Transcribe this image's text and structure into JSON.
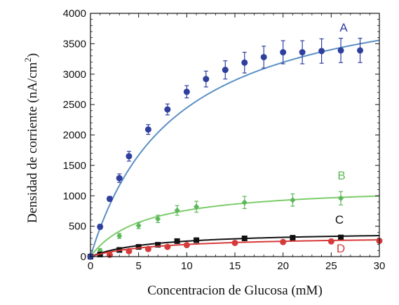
{
  "chart_data": {
    "type": "scatter",
    "title": "",
    "xlabel": "Concentracion de Glucosa (mM)",
    "ylabel_main": "Densidad de corriente (nA/cm",
    "ylabel_sup": "2",
    "ylabel_end": ")",
    "xlim": [
      0,
      30
    ],
    "ylim": [
      0,
      4000
    ],
    "x_ticks": [
      "0",
      "5",
      "10",
      "15",
      "20",
      "25",
      "30"
    ],
    "y_ticks": [
      "0",
      "500",
      "1000",
      "1500",
      "2000",
      "2500",
      "3000",
      "3500",
      "4000"
    ],
    "grid": false,
    "legend": "series labels placed near the right end of each curve",
    "series": [
      {
        "name": "A",
        "color": "#2f3f9e",
        "fit_color": "#5b8fc4",
        "marker": "circle",
        "x": [
          0,
          1,
          2,
          3,
          4,
          6,
          8,
          10,
          12,
          14,
          16,
          18,
          20,
          22,
          24,
          26,
          28
        ],
        "y": [
          0,
          490,
          950,
          1290,
          1650,
          2090,
          2420,
          2710,
          2920,
          3070,
          3190,
          3280,
          3360,
          3360,
          3380,
          3390,
          3390
        ],
        "err": [
          0,
          40,
          40,
          70,
          80,
          80,
          90,
          100,
          130,
          150,
          170,
          180,
          190,
          190,
          200,
          200,
          200
        ],
        "fit_vmax": 4600,
        "fit_km": 8.8
      },
      {
        "name": "B",
        "color": "#5db85a",
        "fit_color": "#7ccc6a",
        "marker": "diamond",
        "x": [
          0,
          1,
          3,
          5,
          7,
          9,
          11,
          16,
          21,
          26
        ],
        "y": [
          0,
          100,
          340,
          510,
          620,
          760,
          820,
          890,
          930,
          960
        ],
        "err": [
          0,
          30,
          40,
          50,
          60,
          80,
          90,
          100,
          100,
          110
        ],
        "fit_vmax": 1180,
        "fit_km": 5.5
      },
      {
        "name": "C",
        "color": "#111111",
        "fit_color": "#111111",
        "marker": "square",
        "x": [
          0,
          1,
          3,
          5,
          7,
          9,
          11,
          16,
          21,
          26
        ],
        "y": [
          0,
          35,
          110,
          160,
          195,
          255,
          270,
          300,
          310,
          315
        ],
        "err": [
          0,
          10,
          15,
          20,
          20,
          25,
          25,
          30,
          30,
          30
        ],
        "fit_vmax": 420,
        "fit_km": 6.5
      },
      {
        "name": "D",
        "color": "#d83a3a",
        "fit_color": "#d83a3a",
        "marker": "circle",
        "x": [
          0,
          2,
          4,
          6,
          8,
          10,
          15,
          20,
          25,
          30
        ],
        "y": [
          0,
          30,
          90,
          125,
          160,
          190,
          225,
          240,
          250,
          260
        ],
        "err": [
          0,
          10,
          10,
          15,
          15,
          15,
          20,
          20,
          20,
          20
        ],
        "fit_vmax": 340,
        "fit_km": 7.0
      }
    ]
  }
}
